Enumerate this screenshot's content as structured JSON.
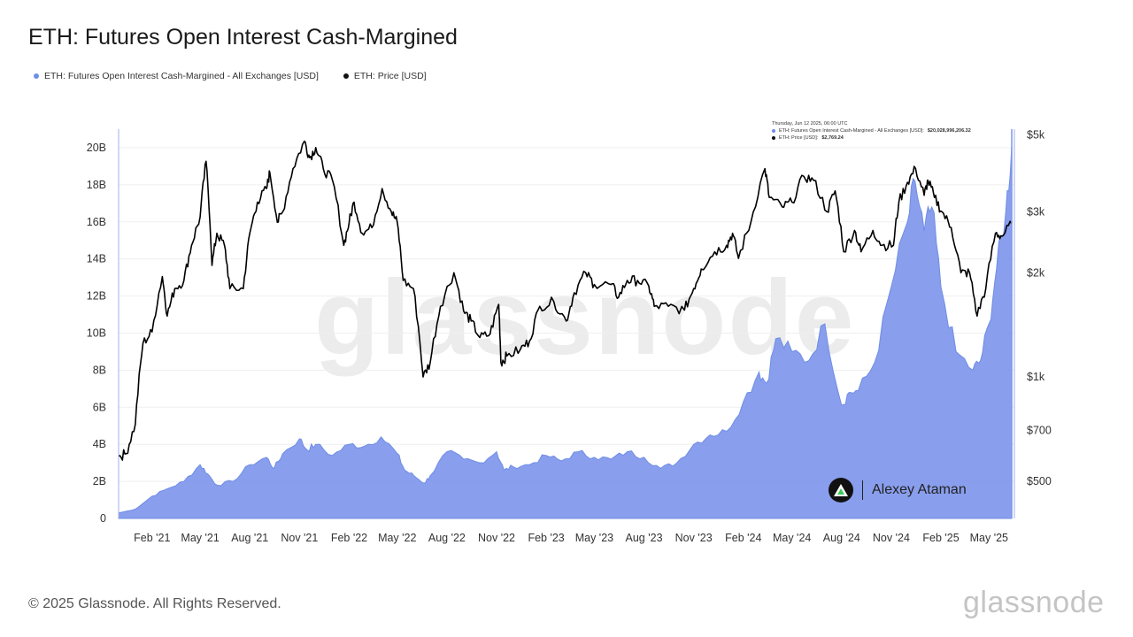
{
  "title": "ETH: Futures Open Interest Cash-Margined",
  "legend": [
    {
      "label": "ETH: Futures Open Interest Cash-Margined - All Exchanges [USD]",
      "color": "#6f8ee6"
    },
    {
      "label": "ETH: Price [USD]",
      "color": "#111111"
    }
  ],
  "tooltip": {
    "date": "Thursday, Jun 12 2025, 06:00 UTC",
    "oi_label": "ETH: Futures Open Interest Cash-Margined - All Exchanges [USD]:",
    "oi_value": "$20,028,996,206.32",
    "price_label": "ETH: Price [USD]:",
    "price_value": "$2,769.24"
  },
  "watermark": "glassnode",
  "badge": {
    "name": "Alexey Ataman"
  },
  "footer": {
    "copyright": "© 2025 Glassnode. All Rights Reserved.",
    "logo": "glassnode"
  },
  "chart_data": {
    "type": "area",
    "x_ticks": [
      "Feb '21",
      "May '21",
      "Aug '21",
      "Nov '21",
      "Feb '22",
      "May '22",
      "Aug '22",
      "Nov '22",
      "Feb '23",
      "May '23",
      "Aug '23",
      "Nov '23",
      "Feb '24",
      "May '24",
      "Aug '24",
      "Nov '24",
      "Feb '25",
      "May '25"
    ],
    "y_left_ticks": [
      "0",
      "2B",
      "4B",
      "6B",
      "8B",
      "10B",
      "12B",
      "14B",
      "16B",
      "18B",
      "20B"
    ],
    "y_left_range": [
      0,
      21000000000
    ],
    "y_right_ticks": [
      "$500",
      "$700",
      "$1k",
      "$2k",
      "$3k",
      "$5k"
    ],
    "y_right_tick_values": [
      500,
      700,
      1000,
      2000,
      3000,
      5000
    ],
    "y_right_scale": "log",
    "grid": "horizontal",
    "legend_position": "top-left",
    "series": [
      {
        "name": "ETH: Futures Open Interest Cash-Margined - All Exchanges [USD]",
        "axis": "left",
        "color": "#7f96ea",
        "x": [
          "2020-12-01",
          "2021-01-01",
          "2021-02-01",
          "2021-03-01",
          "2021-04-01",
          "2021-05-01",
          "2021-05-15",
          "2021-06-01",
          "2021-07-01",
          "2021-08-01",
          "2021-09-01",
          "2021-09-15",
          "2021-10-01",
          "2021-11-01",
          "2021-11-15",
          "2021-12-01",
          "2022-01-01",
          "2022-02-01",
          "2022-03-01",
          "2022-04-01",
          "2022-05-01",
          "2022-05-15",
          "2022-06-01",
          "2022-06-20",
          "2022-07-01",
          "2022-08-01",
          "2022-09-01",
          "2022-10-01",
          "2022-11-01",
          "2022-11-15",
          "2022-12-01",
          "2023-01-01",
          "2023-02-01",
          "2023-03-01",
          "2023-04-01",
          "2023-05-01",
          "2023-06-01",
          "2023-07-01",
          "2023-08-01",
          "2023-09-01",
          "2023-10-01",
          "2023-11-01",
          "2023-12-01",
          "2024-01-01",
          "2024-02-01",
          "2024-03-01",
          "2024-03-15",
          "2024-04-01",
          "2024-05-01",
          "2024-06-01",
          "2024-07-01",
          "2024-08-01",
          "2024-08-15",
          "2024-09-01",
          "2024-10-01",
          "2024-11-01",
          "2024-12-01",
          "2024-12-15",
          "2025-01-01",
          "2025-01-15",
          "2025-02-01",
          "2025-03-01",
          "2025-04-01",
          "2025-04-15",
          "2025-05-01",
          "2025-05-15",
          "2025-06-01",
          "2025-06-12"
        ],
        "values": [
          300000000,
          500000000,
          1200000000,
          1600000000,
          2000000000,
          2900000000,
          2400000000,
          1800000000,
          2000000000,
          2900000000,
          3300000000,
          2700000000,
          3500000000,
          4300000000,
          3700000000,
          4000000000,
          3400000000,
          4000000000,
          3900000000,
          4400000000,
          3500000000,
          2600000000,
          2300000000,
          1900000000,
          2300000000,
          3600000000,
          3200000000,
          3000000000,
          3600000000,
          2600000000,
          2800000000,
          2900000000,
          3400000000,
          3100000000,
          3600000000,
          3300000000,
          3200000000,
          3600000000,
          3300000000,
          2700000000,
          3000000000,
          4000000000,
          4500000000,
          4700000000,
          6300000000,
          7900000000,
          7300000000,
          9700000000,
          9000000000,
          8500000000,
          10500000000,
          6100000000,
          6800000000,
          6900000000,
          8400000000,
          12500000000,
          16000000000,
          18200000000,
          15500000000,
          16800000000,
          12500000000,
          9000000000,
          8000000000,
          8500000000,
          10500000000,
          13500000000,
          16500000000,
          20028996206
        ]
      },
      {
        "name": "ETH: Price [USD]",
        "axis": "right",
        "color": "#000000",
        "x": [
          "2020-12-01",
          "2020-12-15",
          "2021-01-01",
          "2021-01-15",
          "2021-02-01",
          "2021-02-20",
          "2021-03-01",
          "2021-03-15",
          "2021-04-01",
          "2021-04-15",
          "2021-05-01",
          "2021-05-12",
          "2021-05-23",
          "2021-06-01",
          "2021-06-15",
          "2021-06-25",
          "2021-07-20",
          "2021-08-01",
          "2021-08-15",
          "2021-09-01",
          "2021-09-07",
          "2021-09-21",
          "2021-10-01",
          "2021-10-20",
          "2021-11-10",
          "2021-11-20",
          "2021-12-01",
          "2021-12-15",
          "2022-01-01",
          "2022-01-22",
          "2022-02-01",
          "2022-02-10",
          "2022-02-25",
          "2022-03-15",
          "2022-04-03",
          "2022-04-20",
          "2022-05-01",
          "2022-05-12",
          "2022-05-31",
          "2022-06-18",
          "2022-07-01",
          "2022-07-20",
          "2022-08-14",
          "2022-09-01",
          "2022-09-15",
          "2022-10-01",
          "2022-10-20",
          "2022-11-05",
          "2022-11-09",
          "2022-11-20",
          "2022-12-15",
          "2023-01-01",
          "2023-01-20",
          "2023-02-15",
          "2023-03-10",
          "2023-03-25",
          "2023-04-15",
          "2023-05-01",
          "2023-06-01",
          "2023-06-15",
          "2023-07-01",
          "2023-07-20",
          "2023-08-10",
          "2023-08-20",
          "2023-09-15",
          "2023-10-15",
          "2023-11-01",
          "2023-11-15",
          "2023-12-10",
          "2024-01-01",
          "2024-01-12",
          "2024-01-23",
          "2024-02-15",
          "2024-03-12",
          "2024-03-20",
          "2024-04-13",
          "2024-05-01",
          "2024-05-23",
          "2024-06-10",
          "2024-07-05",
          "2024-07-20",
          "2024-08-05",
          "2024-08-25",
          "2024-09-06",
          "2024-09-28",
          "2024-10-15",
          "2024-11-05",
          "2024-11-15",
          "2024-12-01",
          "2024-12-16",
          "2025-01-01",
          "2025-01-08",
          "2025-01-20",
          "2025-02-03",
          "2025-02-20",
          "2025-03-10",
          "2025-03-26",
          "2025-04-09",
          "2025-04-25",
          "2025-05-13",
          "2025-05-25",
          "2025-06-12"
        ],
        "values": [
          590,
          600,
          730,
          1250,
          1350,
          1950,
          1500,
          1800,
          1900,
          2400,
          2900,
          4200,
          2100,
          2600,
          2400,
          1800,
          1800,
          2600,
          3200,
          3500,
          3900,
          2800,
          3000,
          4000,
          4800,
          4300,
          4600,
          4000,
          3700,
          2400,
          2800,
          3200,
          2600,
          2700,
          3500,
          3000,
          2800,
          1900,
          1800,
          1000,
          1100,
          1600,
          2000,
          1550,
          1450,
          1300,
          1330,
          1620,
          1100,
          1150,
          1200,
          1270,
          1600,
          1650,
          1450,
          1750,
          2000,
          1850,
          1850,
          1700,
          1900,
          1900,
          1830,
          1600,
          1600,
          1560,
          1800,
          2050,
          2300,
          2400,
          2600,
          2200,
          2800,
          4000,
          3300,
          3100,
          3200,
          3800,
          3700,
          3000,
          3450,
          2300,
          2650,
          2300,
          2650,
          2400,
          2400,
          3200,
          3650,
          4000,
          3350,
          3700,
          3300,
          3000,
          2700,
          2000,
          2000,
          1500,
          1800,
          2600,
          2550,
          2769
        ]
      }
    ]
  }
}
